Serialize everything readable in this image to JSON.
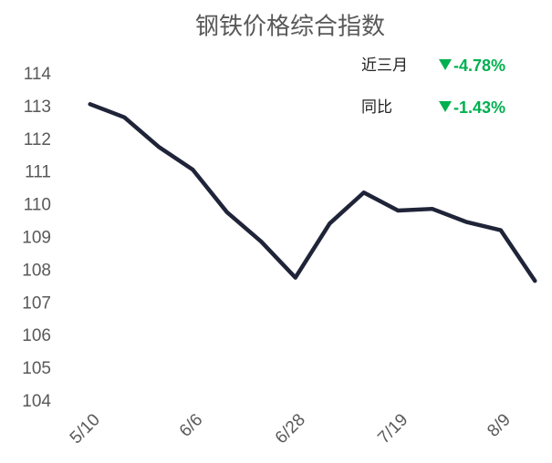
{
  "chart_data": {
    "type": "line",
    "title": "钢铁价格综合指数",
    "categories": [
      "5/10",
      null,
      null,
      "6/6",
      null,
      null,
      "6/28",
      null,
      null,
      "7/19",
      null,
      null,
      "8/9",
      null
    ],
    "series": [
      {
        "name": "钢铁价格综合指数",
        "color": "#1f2438",
        "values": [
          113.1,
          112.7,
          111.8,
          111.1,
          109.8,
          108.9,
          107.8,
          109.45,
          110.4,
          109.85,
          109.9,
          109.5,
          109.25,
          107.7
        ]
      }
    ],
    "ylim": [
      104,
      114
    ],
    "yticks": [
      104,
      105,
      106,
      107,
      108,
      109,
      110,
      111,
      112,
      113,
      114
    ],
    "grid": false,
    "annotations": [
      {
        "label": "近三月",
        "text": "-4.78%",
        "color": "#00b050"
      },
      {
        "label": "同比",
        "text": "-1.43%",
        "color": "#00b050"
      }
    ]
  }
}
